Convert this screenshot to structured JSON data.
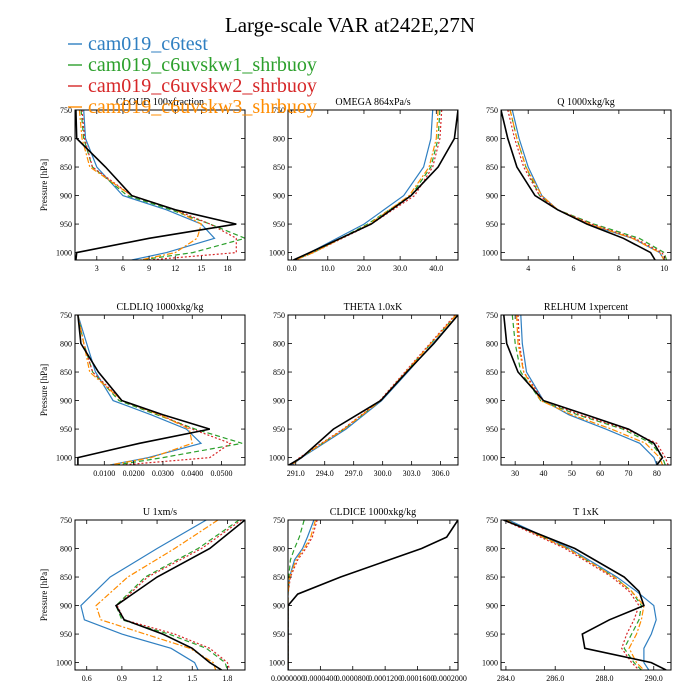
{
  "title": "Large-scale VAR at242E,27N",
  "legend": [
    {
      "name": "cam019_c6test",
      "color": "#2f7fc1",
      "dash": "solid"
    },
    {
      "name": "cam019_c6uvskw1_shrbuoy",
      "color": "#2ca02c",
      "dash": "dashed"
    },
    {
      "name": "cam019_c6uvskw2_shrbuoy",
      "color": "#d62728",
      "dash": "dotted"
    },
    {
      "name": "cam019_c6uvskw3_shrbuoy",
      "color": "#ff8c00",
      "dash": "dashdot"
    }
  ],
  "observation_color": "#000000",
  "chart_data": [
    {
      "type": "line",
      "title": "CLOUD 100xfraction",
      "ylabel": "Pressure [hPa]",
      "xlim": [
        0.5,
        20
      ],
      "ylim": [
        750,
        1013
      ],
      "xticks": [
        3,
        6,
        9,
        12,
        15,
        18
      ],
      "xtick_labels": [
        "3",
        "6",
        "9",
        "12",
        "15",
        "18"
      ],
      "yticks": [
        750,
        800,
        850,
        900,
        950,
        1000
      ],
      "ytick_labels": [
        "750",
        "800",
        "850",
        "900",
        "950",
        "1000"
      ],
      "y": [
        750,
        800,
        850,
        900,
        925,
        950,
        975,
        1000,
        1013
      ],
      "series": [
        {
          "name": "cam019_c6test",
          "values": [
            1.5,
            1.7,
            3,
            6,
            11,
            15,
            16.5,
            11,
            7
          ]
        },
        {
          "name": "cam019_c6uvskw1_shrbuoy",
          "values": [
            1.2,
            1.5,
            2.5,
            6.5,
            11.5,
            16,
            20,
            14,
            8
          ]
        },
        {
          "name": "cam019_c6uvskw2_shrbuoy",
          "values": [
            1.3,
            1.6,
            2.5,
            7,
            12,
            16,
            19,
            19,
            9
          ]
        },
        {
          "name": "cam019_c6uvskw3_shrbuoy",
          "values": [
            1.0,
            1.3,
            2.2,
            7,
            12,
            15,
            14.5,
            12,
            8
          ]
        },
        {
          "name": "observation",
          "values": [
            0.6,
            0.7,
            4,
            7,
            12,
            19,
            9,
            0.7,
            0.6
          ]
        }
      ]
    },
    {
      "type": "line",
      "title": "OMEGA 864xPa/s",
      "ylabel": "",
      "xlim": [
        -1,
        46
      ],
      "ylim": [
        750,
        1013
      ],
      "xticks": [
        0,
        10,
        20,
        30,
        40
      ],
      "xtick_labels": [
        "0.0",
        "10.0",
        "20.0",
        "30.0",
        "40.0"
      ],
      "yticks": [
        750,
        800,
        850,
        900,
        950,
        1000
      ],
      "ytick_labels": [
        "750",
        "800",
        "850",
        "900",
        "950",
        "1000"
      ],
      "y": [
        750,
        800,
        850,
        900,
        950,
        1000,
        1013
      ],
      "series": [
        {
          "name": "cam019_c6test",
          "values": [
            39,
            38.5,
            36.5,
            31,
            20,
            5,
            1
          ]
        },
        {
          "name": "cam019_c6uvskw1_shrbuoy",
          "values": [
            41,
            40.5,
            38.5,
            33,
            21,
            6,
            1
          ]
        },
        {
          "name": "cam019_c6uvskw2_shrbuoy",
          "values": [
            41.5,
            41,
            39,
            34,
            22,
            6,
            1
          ]
        },
        {
          "name": "cam019_c6uvskw3_shrbuoy",
          "values": [
            40.5,
            40,
            38,
            32.5,
            21.5,
            6,
            1
          ]
        },
        {
          "name": "observation",
          "values": [
            46,
            45,
            40.5,
            33,
            22,
            5,
            0.5
          ]
        }
      ]
    },
    {
      "type": "line",
      "title": "Q 1000xkg/kg",
      "ylabel": "",
      "xlim": [
        2.8,
        10.3
      ],
      "ylim": [
        750,
        1013
      ],
      "xticks": [
        4,
        6,
        8,
        10
      ],
      "xtick_labels": [
        "4",
        "6",
        "8",
        "10"
      ],
      "yticks": [
        750,
        800,
        850,
        900,
        950,
        1000
      ],
      "ytick_labels": [
        "750",
        "800",
        "850",
        "900",
        "950",
        "1000"
      ],
      "y": [
        750,
        800,
        850,
        900,
        925,
        950,
        975,
        1000,
        1013
      ],
      "series": [
        {
          "name": "cam019_c6test",
          "values": [
            3.3,
            3.6,
            4.0,
            4.6,
            5.3,
            6.6,
            8.6,
            9.8,
            10.0
          ]
        },
        {
          "name": "cam019_c6uvskw1_shrbuoy",
          "values": [
            3.2,
            3.5,
            3.9,
            4.5,
            5.3,
            6.9,
            8.9,
            10.0,
            10.1
          ]
        },
        {
          "name": "cam019_c6uvskw2_shrbuoy",
          "values": [
            3.1,
            3.4,
            3.8,
            4.5,
            5.3,
            6.8,
            8.7,
            9.9,
            10.1
          ]
        },
        {
          "name": "cam019_c6uvskw3_shrbuoy",
          "values": [
            3.2,
            3.5,
            3.9,
            4.6,
            5.3,
            6.7,
            8.6,
            9.8,
            10.0
          ]
        },
        {
          "name": "observation",
          "values": [
            2.8,
            3.1,
            3.5,
            4.3,
            5.3,
            6.6,
            8.2,
            9.4,
            9.6
          ]
        }
      ]
    },
    {
      "type": "line",
      "title": "CLDLIQ 1000xkg/kg",
      "ylabel": "Pressure [hPa]",
      "xlim": [
        0,
        0.058
      ],
      "ylim": [
        750,
        1013
      ],
      "xticks": [
        0.01,
        0.02,
        0.03,
        0.04,
        0.05
      ],
      "xtick_labels": [
        "0.0100",
        "0.0200",
        "0.0300",
        "0.0400",
        "0.0500"
      ],
      "yticks": [
        750,
        800,
        850,
        900,
        950,
        1000
      ],
      "ytick_labels": [
        "750",
        "800",
        "850",
        "900",
        "950",
        "1000"
      ],
      "y": [
        750,
        800,
        850,
        900,
        925,
        950,
        975,
        1000,
        1013
      ],
      "series": [
        {
          "name": "cam019_c6test",
          "values": [
            0.001,
            0.004,
            0.007,
            0.013,
            0.026,
            0.038,
            0.043,
            0.025,
            0.012
          ]
        },
        {
          "name": "cam019_c6uvskw1_shrbuoy",
          "values": [
            0.001,
            0.003,
            0.006,
            0.015,
            0.028,
            0.041,
            0.057,
            0.03,
            0.014
          ]
        },
        {
          "name": "cam019_c6uvskw2_shrbuoy",
          "values": [
            0.001,
            0.003,
            0.006,
            0.016,
            0.029,
            0.04,
            0.053,
            0.046,
            0.016
          ]
        },
        {
          "name": "cam019_c6uvskw3_shrbuoy",
          "values": [
            0.001,
            0.003,
            0.005,
            0.016,
            0.029,
            0.039,
            0.04,
            0.026,
            0.012
          ]
        },
        {
          "name": "observation",
          "values": [
            0.001,
            0.002,
            0.008,
            0.016,
            0.03,
            0.046,
            0.022,
            0.001,
            0.001
          ]
        }
      ]
    },
    {
      "type": "line",
      "title": "THETA 1.0xK",
      "ylabel": "",
      "xlim": [
        290.2,
        307.8
      ],
      "ylim": [
        750,
        1013
      ],
      "xticks": [
        291,
        294,
        297,
        300,
        303,
        306
      ],
      "xtick_labels": [
        "291.0",
        "294.0",
        "297.0",
        "300.0",
        "303.0",
        "306.0"
      ],
      "yticks": [
        750,
        800,
        850,
        900,
        950,
        1000
      ],
      "ytick_labels": [
        "750",
        "800",
        "850",
        "900",
        "950",
        "1000"
      ],
      "y": [
        750,
        800,
        850,
        900,
        950,
        1000,
        1013
      ],
      "series": [
        {
          "name": "cam019_c6test",
          "values": [
            307.8,
            305.2,
            302.6,
            299.9,
            296.2,
            291.6,
            290.6
          ]
        },
        {
          "name": "cam019_c6uvskw1_shrbuoy",
          "values": [
            307.6,
            305.0,
            302.4,
            299.8,
            296.0,
            291.5,
            290.5
          ]
        },
        {
          "name": "cam019_c6uvskw2_shrbuoy",
          "values": [
            307.5,
            304.9,
            302.3,
            299.7,
            295.9,
            291.4,
            290.5
          ]
        },
        {
          "name": "cam019_c6uvskw3_shrbuoy",
          "values": [
            307.6,
            305.0,
            302.4,
            299.8,
            296.0,
            291.5,
            290.6
          ]
        },
        {
          "name": "observation",
          "values": [
            307.8,
            305.3,
            302.5,
            299.8,
            294.9,
            291.6,
            290.3
          ]
        }
      ]
    },
    {
      "type": "line",
      "title": "RELHUM 1xpercent",
      "ylabel": "",
      "xlim": [
        25,
        85
      ],
      "ylim": [
        750,
        1013
      ],
      "xticks": [
        30,
        40,
        50,
        60,
        70,
        80
      ],
      "xtick_labels": [
        "30",
        "40",
        "50",
        "60",
        "70",
        "80"
      ],
      "yticks": [
        750,
        800,
        850,
        900,
        950,
        1000
      ],
      "ytick_labels": [
        "750",
        "800",
        "850",
        "900",
        "950",
        "1000"
      ],
      "y": [
        750,
        800,
        850,
        900,
        925,
        950,
        975,
        1000,
        1013
      ],
      "series": [
        {
          "name": "cam019_c6test",
          "values": [
            32,
            32.5,
            34,
            40,
            49,
            62,
            74,
            79,
            80
          ]
        },
        {
          "name": "cam019_c6uvskw1_shrbuoy",
          "values": [
            29,
            30,
            32,
            39,
            52,
            68,
            78,
            82,
            83
          ]
        },
        {
          "name": "cam019_c6uvskw2_shrbuoy",
          "values": [
            31,
            31.5,
            33,
            40,
            53,
            69,
            80,
            83,
            84
          ]
        },
        {
          "name": "cam019_c6uvskw3_shrbuoy",
          "values": [
            30.5,
            31,
            33,
            39,
            50,
            64,
            76,
            81,
            82
          ]
        },
        {
          "name": "observation",
          "values": [
            26,
            27,
            31,
            40,
            55,
            70,
            79,
            82,
            80
          ]
        }
      ]
    },
    {
      "type": "line",
      "title": "U 1xm/s",
      "ylabel": "Pressure [hPa]",
      "xlim": [
        0.5,
        1.95
      ],
      "ylim": [
        750,
        1013
      ],
      "xticks": [
        0.6,
        0.9,
        1.2,
        1.5,
        1.8
      ],
      "xtick_labels": [
        "0.6",
        "0.9",
        "1.2",
        "1.5",
        "1.8"
      ],
      "yticks": [
        750,
        800,
        850,
        900,
        950,
        1000
      ],
      "ytick_labels": [
        "750",
        "800",
        "850",
        "900",
        "950",
        "1000"
      ],
      "y": [
        750,
        800,
        850,
        900,
        925,
        950,
        975,
        1000,
        1013
      ],
      "series": [
        {
          "name": "cam019_c6test",
          "values": [
            1.62,
            1.2,
            0.8,
            0.55,
            0.58,
            0.9,
            1.32,
            1.52,
            1.55
          ]
        },
        {
          "name": "cam019_c6uvskw1_shrbuoy",
          "values": [
            1.9,
            1.55,
            1.1,
            0.85,
            0.9,
            1.3,
            1.62,
            1.78,
            1.8
          ]
        },
        {
          "name": "cam019_c6uvskw2_shrbuoy",
          "values": [
            1.92,
            1.58,
            1.12,
            0.86,
            0.92,
            1.35,
            1.65,
            1.8,
            1.82
          ]
        },
        {
          "name": "cam019_c6uvskw3_shrbuoy",
          "values": [
            1.72,
            1.35,
            0.95,
            0.68,
            0.72,
            1.1,
            1.48,
            1.68,
            1.7
          ]
        },
        {
          "name": "observation",
          "values": [
            1.95,
            1.65,
            1.2,
            0.85,
            0.92,
            1.25,
            1.5,
            1.65,
            1.75
          ]
        }
      ]
    },
    {
      "type": "line",
      "title": "CLDICE 1000xkg/kg",
      "ylabel": "",
      "xlim": [
        0,
        0.00021
      ],
      "ylim": [
        750,
        1013
      ],
      "xticks": [
        0,
        4e-05,
        8e-05,
        0.00012,
        0.00016,
        0.0002
      ],
      "xtick_labels": [
        "0.0000000",
        "0.0000400",
        "0.0000800",
        "0.0001200",
        "0.0001600",
        "0.0002000"
      ],
      "yticks": [
        750,
        800,
        850,
        900,
        950,
        1000
      ],
      "ytick_labels": [
        "750",
        "800",
        "850",
        "900",
        "950",
        "1000"
      ],
      "y": [
        750,
        780,
        800,
        820,
        850,
        880,
        900,
        950,
        1000,
        1013
      ],
      "series": [
        {
          "name": "cam019_c6test",
          "values": [
            3.2e-05,
            2.4e-05,
            1.8e-05,
            8e-06,
            2e-06,
            0,
            0,
            0,
            0,
            0
          ]
        },
        {
          "name": "cam019_c6uvskw1_shrbuoy",
          "values": [
            2e-05,
            1.4e-05,
            8e-06,
            3e-06,
            1e-06,
            0,
            0,
            0,
            0,
            0
          ]
        },
        {
          "name": "cam019_c6uvskw2_shrbuoy",
          "values": [
            3.6e-05,
            3e-05,
            2.2e-05,
            1.2e-05,
            3e-06,
            0,
            0,
            0,
            0,
            0
          ]
        },
        {
          "name": "cam019_c6uvskw3_shrbuoy",
          "values": [
            3.4e-05,
            2.8e-05,
            2e-05,
            1e-05,
            2e-06,
            0,
            0,
            0,
            0,
            0
          ]
        },
        {
          "name": "observation",
          "values": [
            0.00021,
            0.000196,
            0.000165,
            0.000125,
            6.5e-05,
            1.2e-05,
            0,
            0,
            0,
            0
          ]
        }
      ]
    },
    {
      "type": "line",
      "title": "T 1xK",
      "ylabel": "",
      "xlim": [
        283.8,
        290.7
      ],
      "ylim": [
        750,
        1013
      ],
      "xticks": [
        284,
        286,
        288,
        290
      ],
      "xtick_labels": [
        "284.0",
        "286.0",
        "288.0",
        "290.0"
      ],
      "yticks": [
        750,
        800,
        850,
        900,
        950,
        1000
      ],
      "ytick_labels": [
        "750",
        "800",
        "850",
        "900",
        "950",
        "1000"
      ],
      "y": [
        750,
        800,
        850,
        875,
        900,
        925,
        950,
        975,
        1000,
        1013
      ],
      "series": [
        {
          "name": "cam019_c6test",
          "values": [
            284.1,
            286.6,
            288.5,
            289.3,
            290.0,
            290.1,
            289.9,
            289.6,
            289.6,
            289.8
          ]
        },
        {
          "name": "cam019_c6uvskw1_shrbuoy",
          "values": [
            284.0,
            286.5,
            288.4,
            289.1,
            289.5,
            289.4,
            289.1,
            288.8,
            289.2,
            289.5
          ]
        },
        {
          "name": "cam019_c6uvskw2_shrbuoy",
          "values": [
            283.9,
            286.4,
            288.3,
            289.0,
            289.4,
            289.2,
            288.9,
            288.7,
            289.1,
            289.4
          ]
        },
        {
          "name": "cam019_c6uvskw3_shrbuoy",
          "values": [
            284.0,
            286.5,
            288.4,
            289.1,
            289.6,
            289.5,
            289.3,
            289.0,
            289.3,
            289.6
          ]
        },
        {
          "name": "observation",
          "values": [
            283.9,
            286.8,
            288.8,
            289.4,
            289.6,
            288.2,
            287.1,
            287.2,
            289.9,
            290.5
          ]
        }
      ]
    }
  ]
}
